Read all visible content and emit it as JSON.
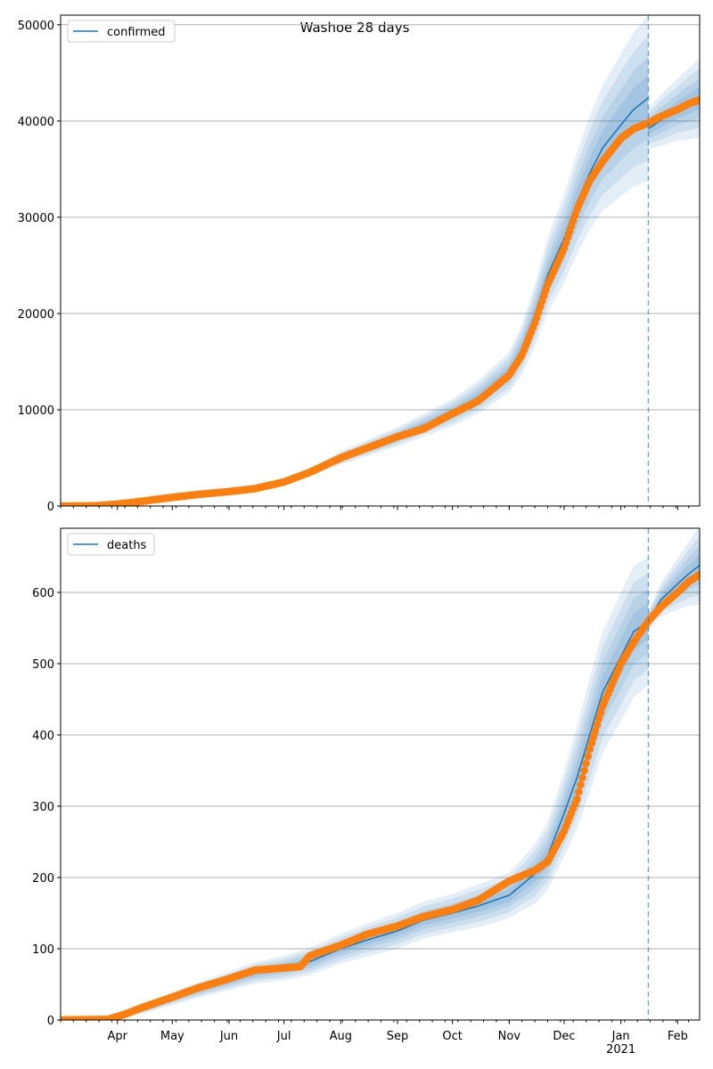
{
  "figure": {
    "suptitle": "Washoe 28 days",
    "forecast_start": "2021-01-16",
    "colors": {
      "model": "#1f77b4",
      "observed": "#ff7f0e",
      "band": "#1f77b4",
      "grid": "#b0b0b0",
      "forecast_line": "#1f77b4"
    }
  },
  "x_axis": {
    "range": [
      "2020-03-01",
      "2021-02-13"
    ],
    "month_ticks": [
      {
        "date": "2020-04-01",
        "label": "Apr"
      },
      {
        "date": "2020-05-01",
        "label": "May"
      },
      {
        "date": "2020-06-01",
        "label": "Jun"
      },
      {
        "date": "2020-07-01",
        "label": "Jul"
      },
      {
        "date": "2020-08-01",
        "label": "Aug"
      },
      {
        "date": "2020-09-01",
        "label": "Sep"
      },
      {
        "date": "2020-10-01",
        "label": "Oct"
      },
      {
        "date": "2020-11-01",
        "label": "Nov"
      },
      {
        "date": "2020-12-01",
        "label": "Dec"
      },
      {
        "date": "2021-01-01",
        "label": "Jan"
      },
      {
        "date": "2021-02-01",
        "label": "Feb"
      }
    ],
    "year_label": {
      "date": "2021-01-01",
      "label": "2021"
    }
  },
  "chart_data": [
    {
      "type": "line",
      "legend": "confirmed",
      "legend_position": "top-left",
      "grid": "horizontal",
      "ylim": [
        0,
        51000
      ],
      "yticks": [
        0,
        10000,
        20000,
        30000,
        40000,
        50000
      ],
      "model_series": {
        "name": "confirmed",
        "x": [
          "2020-03-01",
          "2020-04-01",
          "2020-05-01",
          "2020-06-01",
          "2020-07-01",
          "2020-07-15",
          "2020-08-01",
          "2020-09-01",
          "2020-10-01",
          "2020-10-15",
          "2020-11-01",
          "2020-11-08",
          "2020-11-15",
          "2020-11-22",
          "2020-12-01",
          "2020-12-08",
          "2020-12-15",
          "2020-12-22",
          "2021-01-01",
          "2021-01-08",
          "2021-01-16"
        ],
        "values": [
          0,
          150,
          900,
          1600,
          2500,
          3500,
          5000,
          7200,
          9700,
          11300,
          13900,
          16300,
          19800,
          24000,
          27800,
          31500,
          34600,
          37200,
          39600,
          41200,
          42400
        ],
        "band_spread": [
          0,
          20,
          90,
          160,
          250,
          400,
          700,
          1000,
          1400,
          1700,
          2100,
          2600,
          3200,
          3900,
          4600,
          5300,
          5900,
          6500,
          7400,
          8000,
          8600
        ]
      },
      "forecast_series": {
        "x": [
          "2021-01-16",
          "2021-01-23",
          "2021-02-01",
          "2021-02-07",
          "2021-02-13"
        ],
        "values": [
          39200,
          40100,
          41200,
          41800,
          42400
        ],
        "band_spread": [
          2100,
          2700,
          3200,
          3700,
          4100
        ]
      },
      "observed": {
        "x": [
          "2020-03-01",
          "2020-03-20",
          "2020-04-01",
          "2020-04-15",
          "2020-05-01",
          "2020-05-15",
          "2020-06-01",
          "2020-06-15",
          "2020-07-01",
          "2020-07-15",
          "2020-08-01",
          "2020-08-15",
          "2020-09-01",
          "2020-09-15",
          "2020-10-01",
          "2020-10-15",
          "2020-11-01",
          "2020-11-08",
          "2020-11-15",
          "2020-11-22",
          "2020-12-01",
          "2020-12-08",
          "2020-12-15",
          "2020-12-22",
          "2021-01-01",
          "2021-01-08",
          "2021-01-16",
          "2021-01-23",
          "2021-02-01",
          "2021-02-07",
          "2021-02-13"
        ],
        "values": [
          0,
          20,
          200,
          500,
          900,
          1200,
          1500,
          1800,
          2500,
          3500,
          5000,
          6000,
          7200,
          8000,
          9600,
          10900,
          13600,
          15700,
          19000,
          23000,
          26800,
          30800,
          33800,
          35800,
          38200,
          39200,
          39800,
          40500,
          41200,
          41800,
          42200
        ]
      }
    },
    {
      "type": "line",
      "legend": "deaths",
      "legend_position": "top-left",
      "grid": "horizontal",
      "ylim": [
        0,
        690
      ],
      "yticks": [
        0,
        100,
        200,
        300,
        400,
        500,
        600
      ],
      "model_series": {
        "name": "deaths",
        "x": [
          "2020-03-01",
          "2020-03-25",
          "2020-04-15",
          "2020-05-01",
          "2020-05-15",
          "2020-06-01",
          "2020-06-15",
          "2020-07-01",
          "2020-07-15",
          "2020-08-01",
          "2020-08-15",
          "2020-09-01",
          "2020-09-15",
          "2020-10-01",
          "2020-10-15",
          "2020-11-01",
          "2020-11-08",
          "2020-11-15",
          "2020-11-22",
          "2020-12-01",
          "2020-12-08",
          "2020-12-15",
          "2020-12-22",
          "2021-01-01",
          "2021-01-08",
          "2021-01-16"
        ],
        "values": [
          0,
          2,
          15,
          30,
          42,
          55,
          66,
          73,
          82,
          100,
          112,
          125,
          140,
          150,
          160,
          175,
          190,
          205,
          230,
          290,
          340,
          400,
          460,
          510,
          545,
          560
        ],
        "band_spread": [
          0,
          2,
          6,
          9,
          11,
          13,
          15,
          17,
          19,
          21,
          23,
          25,
          26,
          27,
          30,
          32,
          36,
          42,
          48,
          60,
          72,
          80,
          85,
          90,
          92,
          90
        ]
      },
      "forecast_series": {
        "x": [
          "2021-01-16",
          "2021-01-23",
          "2021-02-01",
          "2021-02-07",
          "2021-02-13"
        ],
        "values": [
          560,
          590,
          612,
          626,
          638
        ],
        "band_spread": [
          14,
          24,
          36,
          45,
          55
        ]
      },
      "observed": {
        "x": [
          "2020-03-01",
          "2020-03-27",
          "2020-04-05",
          "2020-04-15",
          "2020-05-01",
          "2020-05-15",
          "2020-06-01",
          "2020-06-15",
          "2020-07-01",
          "2020-07-10",
          "2020-07-15",
          "2020-08-01",
          "2020-08-15",
          "2020-09-01",
          "2020-09-15",
          "2020-10-01",
          "2020-10-15",
          "2020-11-01",
          "2020-11-15",
          "2020-11-22",
          "2020-12-01",
          "2020-12-08",
          "2020-12-15",
          "2020-12-22",
          "2021-01-01",
          "2021-01-08",
          "2021-01-16",
          "2021-01-23",
          "2021-02-01",
          "2021-02-07",
          "2021-02-13"
        ],
        "values": [
          0,
          1,
          8,
          18,
          32,
          45,
          58,
          70,
          73,
          75,
          90,
          105,
          120,
          132,
          145,
          155,
          168,
          195,
          210,
          222,
          265,
          310,
          380,
          440,
          500,
          530,
          560,
          580,
          600,
          615,
          625
        ]
      }
    }
  ]
}
